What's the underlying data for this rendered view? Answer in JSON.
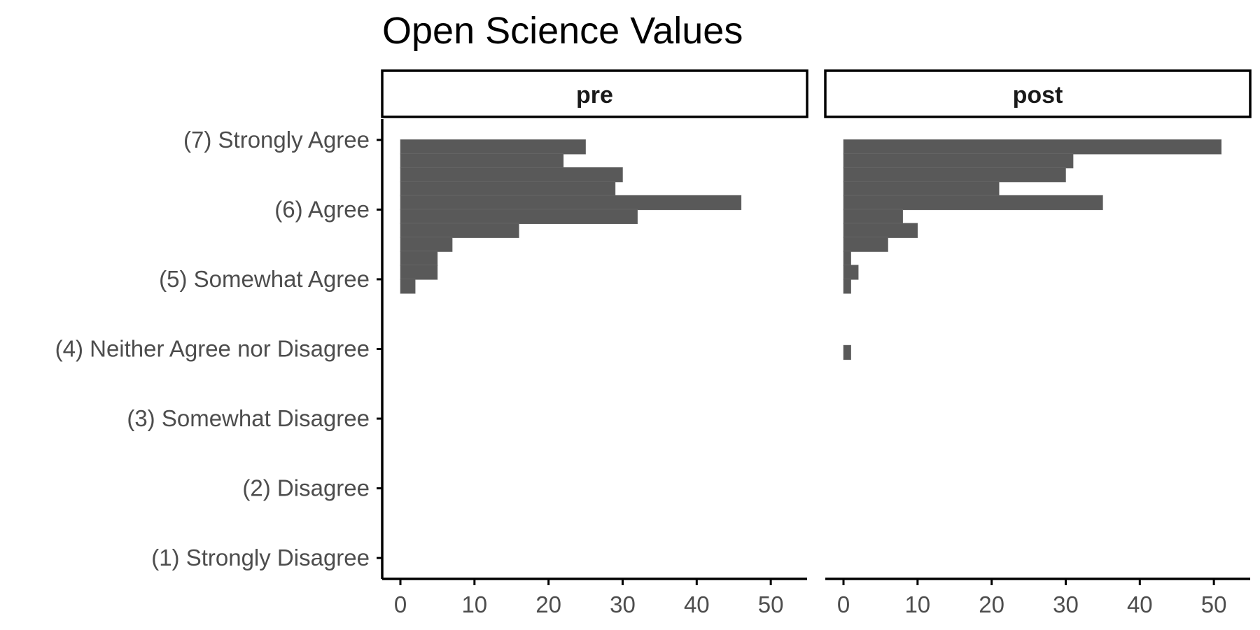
{
  "chart_data": {
    "type": "bar",
    "orientation": "horizontal",
    "title": "Open Science Values",
    "xlabel": "",
    "ylabel": "",
    "xlim": [
      0,
      53
    ],
    "x_ticks": [
      0,
      10,
      20,
      30,
      40,
      50
    ],
    "y_categories": [
      "(1) Strongly Disagree",
      "(2) Disagree",
      "(3) Somewhat Disagree",
      "(4) Neither Agree nor Disagree",
      "(5) Somewhat Agree",
      "(6) Agree",
      "(7) Strongly Agree"
    ],
    "ylim": [
      0.7,
      7.3
    ],
    "bin_width": 0.2,
    "grid": false,
    "legend": "none",
    "bar_color": "#595959",
    "panels": [
      {
        "name": "pre",
        "bins": [
          {
            "y": 6.9,
            "value": 25
          },
          {
            "y": 6.7,
            "value": 22
          },
          {
            "y": 6.5,
            "value": 30
          },
          {
            "y": 6.3,
            "value": 29
          },
          {
            "y": 6.1,
            "value": 46
          },
          {
            "y": 5.9,
            "value": 32
          },
          {
            "y": 5.7,
            "value": 16
          },
          {
            "y": 5.5,
            "value": 7
          },
          {
            "y": 5.3,
            "value": 5
          },
          {
            "y": 5.1,
            "value": 5
          },
          {
            "y": 4.9,
            "value": 2
          }
        ]
      },
      {
        "name": "post",
        "bins": [
          {
            "y": 6.9,
            "value": 51
          },
          {
            "y": 6.7,
            "value": 31
          },
          {
            "y": 6.5,
            "value": 30
          },
          {
            "y": 6.3,
            "value": 21
          },
          {
            "y": 6.1,
            "value": 35
          },
          {
            "y": 5.9,
            "value": 8
          },
          {
            "y": 5.7,
            "value": 10
          },
          {
            "y": 5.5,
            "value": 6
          },
          {
            "y": 5.3,
            "value": 1
          },
          {
            "y": 5.1,
            "value": 2
          },
          {
            "y": 4.9,
            "value": 1
          },
          {
            "y": 3.95,
            "value": 1
          }
        ]
      }
    ]
  }
}
